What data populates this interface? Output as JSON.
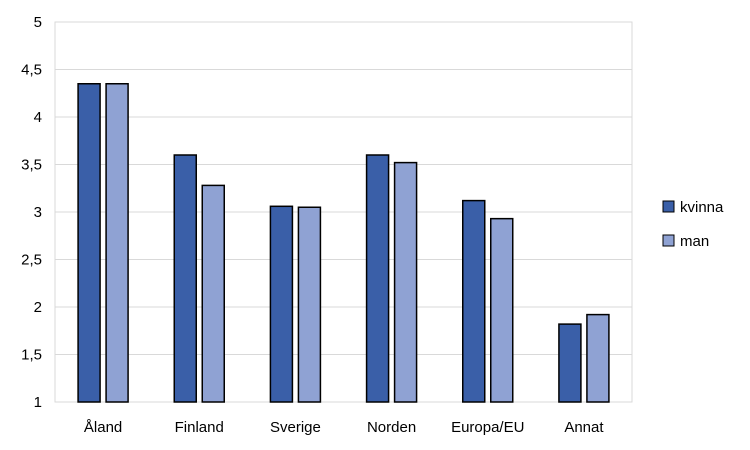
{
  "chart_data": {
    "type": "bar",
    "categories": [
      "Åland",
      "Finland",
      "Sverige",
      "Norden",
      "Europa/EU",
      "Annat"
    ],
    "series": [
      {
        "name": "kvinna",
        "values": [
          4.35,
          3.6,
          3.06,
          3.6,
          3.12,
          1.82
        ],
        "color": "#3a5fa8"
      },
      {
        "name": "man",
        "values": [
          4.35,
          3.28,
          3.05,
          3.52,
          2.93,
          1.92
        ],
        "color": "#8fa2d3"
      }
    ],
    "y_ticks": [
      "1",
      "1,5",
      "2",
      "2,5",
      "3",
      "3,5",
      "4",
      "4,5",
      "5"
    ],
    "ylim": [
      1,
      5
    ],
    "grid": true,
    "legend_position": "right",
    "title": "",
    "xlabel": "",
    "ylabel": ""
  }
}
